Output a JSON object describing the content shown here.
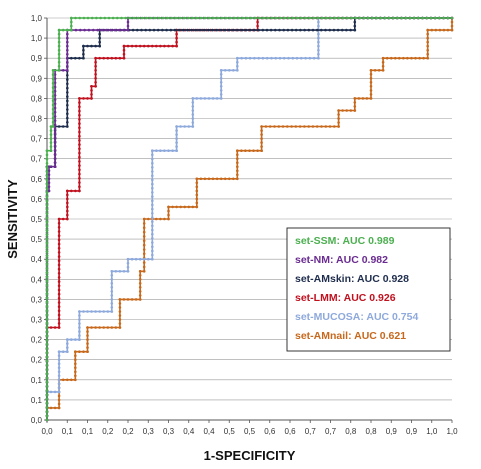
{
  "chart_data": {
    "type": "line",
    "title": "",
    "xlabel": "1-SPECIFICITY",
    "ylabel": "SENSITIVITY",
    "xlim": [
      0,
      1
    ],
    "ylim": [
      0,
      1
    ],
    "x_ticks": [
      "0,0",
      "0,1",
      "0,1",
      "0,2",
      "0,2",
      "0,3",
      "0,3",
      "0,4",
      "0,4",
      "0,5",
      "0,5",
      "0,6",
      "0,6",
      "0,7",
      "0,7",
      "0,8",
      "0,8",
      "0,9",
      "0,9",
      "1,0",
      "1,0"
    ],
    "y_ticks": [
      "0,0",
      "0,1",
      "0,1",
      "0,2",
      "0,2",
      "0,3",
      "0,3",
      "0,4",
      "0,4",
      "0,5",
      "0,5",
      "0,6",
      "0,6",
      "0,7",
      "0,7",
      "0,8",
      "0,8",
      "0,9",
      "0,9",
      "1,0",
      "1,0"
    ],
    "grid": "horizontal",
    "legend_placement": "bottom-right",
    "series": [
      {
        "name": "set-SSM",
        "auc_label": "AUC 0.989",
        "color": "#4caf50",
        "points": [
          [
            0,
            0
          ],
          [
            0,
            0.67
          ],
          [
            0.01,
            0.67
          ],
          [
            0.01,
            0.73
          ],
          [
            0.015,
            0.73
          ],
          [
            0.015,
            0.87
          ],
          [
            0.03,
            0.87
          ],
          [
            0.03,
            0.97
          ],
          [
            0.06,
            0.97
          ],
          [
            0.06,
            1.0
          ],
          [
            1,
            1
          ]
        ]
      },
      {
        "name": "set-NM",
        "auc_label": "AUC 0.982",
        "color": "#6a2c91",
        "points": [
          [
            0,
            0
          ],
          [
            0,
            0.57
          ],
          [
            0.005,
            0.57
          ],
          [
            0.005,
            0.63
          ],
          [
            0.02,
            0.63
          ],
          [
            0.02,
            0.87
          ],
          [
            0.05,
            0.87
          ],
          [
            0.05,
            0.97
          ],
          [
            0.2,
            0.97
          ],
          [
            0.2,
            1.0
          ],
          [
            1,
            1
          ]
        ]
      },
      {
        "name": "set-AMskin",
        "auc_label": "AUC 0.928",
        "color": "#1f2d4d",
        "points": [
          [
            0,
            0
          ],
          [
            0,
            0.63
          ],
          [
            0.02,
            0.63
          ],
          [
            0.02,
            0.73
          ],
          [
            0.05,
            0.73
          ],
          [
            0.05,
            0.9
          ],
          [
            0.09,
            0.9
          ],
          [
            0.09,
            0.93
          ],
          [
            0.13,
            0.93
          ],
          [
            0.13,
            0.97
          ],
          [
            0.76,
            0.97
          ],
          [
            0.76,
            1.0
          ],
          [
            1,
            1
          ]
        ]
      },
      {
        "name": "set-LMM",
        "auc_label": "AUC 0.926",
        "color": "#c0111f",
        "points": [
          [
            0,
            0
          ],
          [
            0,
            0.23
          ],
          [
            0.03,
            0.23
          ],
          [
            0.03,
            0.5
          ],
          [
            0.05,
            0.5
          ],
          [
            0.05,
            0.57
          ],
          [
            0.08,
            0.57
          ],
          [
            0.08,
            0.8
          ],
          [
            0.11,
            0.8
          ],
          [
            0.11,
            0.83
          ],
          [
            0.12,
            0.83
          ],
          [
            0.12,
            0.9
          ],
          [
            0.19,
            0.9
          ],
          [
            0.19,
            0.93
          ],
          [
            0.32,
            0.93
          ],
          [
            0.32,
            0.97
          ],
          [
            0.52,
            0.97
          ],
          [
            0.52,
            1.0
          ],
          [
            1,
            1
          ]
        ]
      },
      {
        "name": "set-MUCOSA",
        "auc_label": "AUC 0.754",
        "color": "#8ea9db",
        "points": [
          [
            0,
            0
          ],
          [
            0,
            0.07
          ],
          [
            0.03,
            0.07
          ],
          [
            0.03,
            0.17
          ],
          [
            0.05,
            0.17
          ],
          [
            0.05,
            0.2
          ],
          [
            0.08,
            0.2
          ],
          [
            0.08,
            0.27
          ],
          [
            0.16,
            0.27
          ],
          [
            0.16,
            0.37
          ],
          [
            0.2,
            0.37
          ],
          [
            0.2,
            0.4
          ],
          [
            0.26,
            0.4
          ],
          [
            0.26,
            0.67
          ],
          [
            0.32,
            0.67
          ],
          [
            0.32,
            0.73
          ],
          [
            0.36,
            0.73
          ],
          [
            0.36,
            0.8
          ],
          [
            0.43,
            0.8
          ],
          [
            0.43,
            0.87
          ],
          [
            0.47,
            0.87
          ],
          [
            0.47,
            0.9
          ],
          [
            0.67,
            0.9
          ],
          [
            0.67,
            1.0
          ],
          [
            1,
            1
          ]
        ]
      },
      {
        "name": "set-AMnail",
        "auc_label": "AUC 0.621",
        "color": "#c7691d",
        "points": [
          [
            0,
            0
          ],
          [
            0,
            0.03
          ],
          [
            0.03,
            0.03
          ],
          [
            0.03,
            0.1
          ],
          [
            0.07,
            0.1
          ],
          [
            0.07,
            0.17
          ],
          [
            0.1,
            0.17
          ],
          [
            0.1,
            0.23
          ],
          [
            0.18,
            0.23
          ],
          [
            0.18,
            0.3
          ],
          [
            0.23,
            0.3
          ],
          [
            0.23,
            0.37
          ],
          [
            0.24,
            0.37
          ],
          [
            0.24,
            0.5
          ],
          [
            0.3,
            0.5
          ],
          [
            0.3,
            0.53
          ],
          [
            0.37,
            0.53
          ],
          [
            0.37,
            0.6
          ],
          [
            0.47,
            0.6
          ],
          [
            0.47,
            0.67
          ],
          [
            0.53,
            0.67
          ],
          [
            0.53,
            0.73
          ],
          [
            0.72,
            0.73
          ],
          [
            0.72,
            0.77
          ],
          [
            0.76,
            0.77
          ],
          [
            0.76,
            0.8
          ],
          [
            0.8,
            0.8
          ],
          [
            0.8,
            0.87
          ],
          [
            0.83,
            0.87
          ],
          [
            0.83,
            0.9
          ],
          [
            0.94,
            0.9
          ],
          [
            0.94,
            0.97
          ],
          [
            1,
            0.97
          ],
          [
            1,
            1
          ]
        ]
      }
    ]
  }
}
